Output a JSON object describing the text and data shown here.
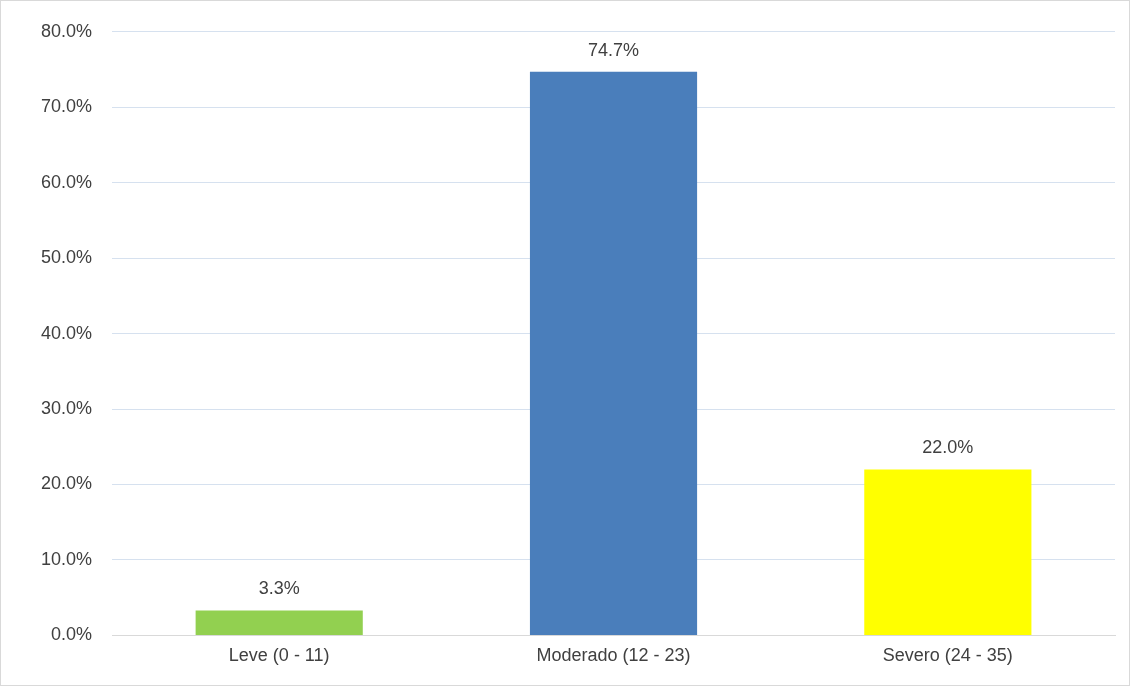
{
  "chart_data": {
    "type": "bar",
    "categories": [
      "Leve (0 - 11)",
      "Moderado (12 - 23)",
      "Severo (24 - 35)"
    ],
    "values": [
      3.3,
      74.7,
      22.0
    ],
    "colors": [
      "#92d050",
      "#4a7ebb",
      "#ffff00"
    ],
    "value_labels": [
      "3.3%",
      "74.7%",
      "22.0%"
    ],
    "ylim": [
      0,
      80
    ],
    "yticks": [
      {
        "value": 0,
        "label": "0.0%"
      },
      {
        "value": 10,
        "label": "10.0%"
      },
      {
        "value": 20,
        "label": "20.0%"
      },
      {
        "value": 30,
        "label": "30.0%"
      },
      {
        "value": 40,
        "label": "40.0%"
      },
      {
        "value": 50,
        "label": "50.0%"
      },
      {
        "value": 60,
        "label": "60.0%"
      },
      {
        "value": 70,
        "label": "70.0%"
      },
      {
        "value": 80,
        "label": "80.0%"
      }
    ],
    "grid": "y",
    "legend": false
  }
}
